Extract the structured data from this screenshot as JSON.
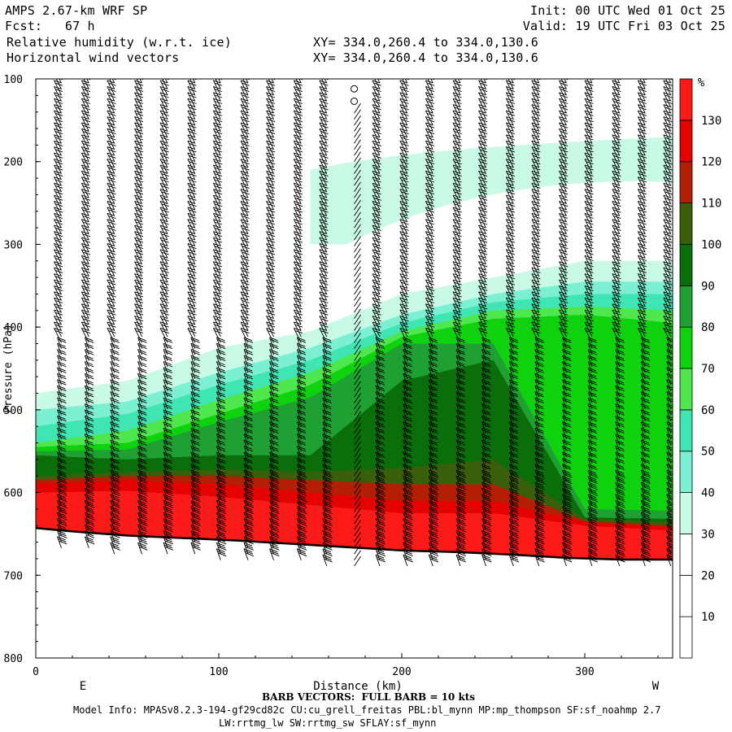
{
  "header": {
    "model": "AMPS 2.67-km WRF SP",
    "fcst": "Fcst:   67 h",
    "field1": "Relative humidity (w.r.t. ice)",
    "field2": "Horizontal wind vectors",
    "xy1": "XY= 334.0,260.4 to 334.0,130.6",
    "xy2": "XY= 334.0,260.4 to 334.0,130.6",
    "init": "Init: 00 UTC Wed 01 Oct 25",
    "valid": "Valid: 19 UTC Fri 03 Oct 25"
  },
  "footer": {
    "barb_note": "BARB VECTORS:  FULL BARB = 10 kts",
    "model_info_1": "Model Info: MPASv8.2.3-194-gf29cd82c CU:cu_grell_freitas PBL:bl_mynn MP:mp_thompson SF:sf_noahmp 2.7",
    "model_info_2": "LW:rrtmg_lw SW:rrtmg_sw SFLAY:sf_mynn"
  },
  "colors": {
    "c10": "#ffffff",
    "c20": "#ffffff",
    "c30": "#ffffff",
    "c40": "#c8fae6",
    "c50": "#7cf0d2",
    "c60": "#3fe6b4",
    "c70": "#4ee84e",
    "c80": "#0fd20f",
    "c90": "#1ea032",
    "c100": "#0a6e0a",
    "c110": "#3a5f0b",
    "c120": "#b41e05",
    "c130": "#e60000",
    "c140": "#ff1a1a",
    "terrain": "#000000"
  },
  "chart_data": {
    "type": "heatmap",
    "title": "Relative humidity (w.r.t. ice)",
    "subtitle": "Horizontal wind vectors",
    "xlabel": "Distance (km)",
    "ylabel": "Pressure (hPa)",
    "x_range": [
      0,
      348
    ],
    "y_range": [
      100,
      800
    ],
    "y_inverted": true,
    "x_ticks": [
      0,
      100,
      200,
      300
    ],
    "y_ticks": [
      100,
      200,
      300,
      400,
      500,
      600,
      700,
      800
    ],
    "x_end_labels": {
      "left": "E",
      "right": "W"
    },
    "colorbar": {
      "unit": "%",
      "levels": [
        10,
        20,
        30,
        40,
        50,
        60,
        70,
        80,
        90,
        100,
        110,
        120,
        130
      ],
      "color_keys": [
        "c10",
        "c20",
        "c30",
        "c40",
        "c50",
        "c60",
        "c70",
        "c80",
        "c90",
        "c100",
        "c110",
        "c120",
        "c130",
        "c140"
      ]
    },
    "terrain_surface_hpa": [
      {
        "x": 0,
        "p": 643
      },
      {
        "x": 20,
        "p": 647
      },
      {
        "x": 50,
        "p": 652
      },
      {
        "x": 80,
        "p": 655
      },
      {
        "x": 110,
        "p": 658
      },
      {
        "x": 140,
        "p": 662
      },
      {
        "x": 170,
        "p": 666
      },
      {
        "x": 200,
        "p": 670
      },
      {
        "x": 230,
        "p": 672
      },
      {
        "x": 260,
        "p": 675
      },
      {
        "x": 290,
        "p": 679
      },
      {
        "x": 320,
        "p": 681
      },
      {
        "x": 348,
        "p": 681
      }
    ],
    "rh_profiles": [
      {
        "x": 0,
        "cuts": [
          395,
          440,
          480,
          500,
          520,
          540,
          545,
          550,
          555,
          580,
          585,
          590,
          600
        ]
      },
      {
        "x": 50,
        "cuts": [
          378,
          420,
          465,
          490,
          505,
          525,
          540,
          548,
          560,
          575,
          580,
          585,
          598
        ]
      },
      {
        "x": 100,
        "cuts": [
          365,
          395,
          425,
          455,
          470,
          488,
          505,
          515,
          555,
          572,
          580,
          590,
          605
        ]
      },
      {
        "x": 150,
        "cuts": [
          355,
          380,
          405,
          425,
          440,
          455,
          470,
          485,
          555,
          575,
          585,
          600,
          615
        ]
      },
      {
        "x": 200,
        "cuts": [
          320,
          340,
          360,
          385,
          395,
          405,
          412,
          420,
          465,
          570,
          590,
          610,
          625
        ]
      },
      {
        "x": 250,
        "cuts": [
          290,
          315,
          340,
          360,
          370,
          380,
          390,
          420,
          440,
          560,
          590,
          610,
          625
        ]
      },
      {
        "x": 300,
        "cuts": [
          270,
          300,
          320,
          345,
          360,
          375,
          385,
          620,
          630,
          632,
          634,
          636,
          640
        ]
      },
      {
        "x": 348,
        "cuts": [
          260,
          295,
          320,
          345,
          360,
          380,
          395,
          622,
          632,
          636,
          640,
          642,
          646
        ]
      }
    ],
    "upper_moist_band": {
      "top_hpa": 185,
      "bottom_hpa": 220,
      "x_start": 150,
      "color_key": "c40"
    },
    "barb_columns_km": [
      14,
      29,
      43,
      58,
      72,
      87,
      101,
      116,
      130,
      145,
      159,
      174,
      188,
      203,
      217,
      232,
      246,
      261,
      275,
      290,
      304,
      319,
      333,
      347
    ],
    "calm_barbs": [
      {
        "x": 174,
        "p": 112
      },
      {
        "x": 174,
        "p": 127
      }
    ]
  }
}
